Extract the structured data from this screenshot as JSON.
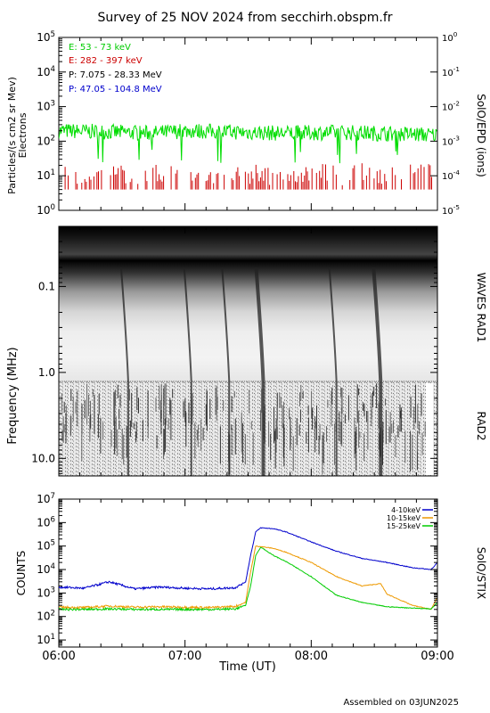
{
  "title": "Survey of 25 NOV 2024 from secchirh.obspm.fr",
  "footer": "Assembled on 03JUN2025",
  "x_axis": {
    "label": "Time (UT)",
    "ticks": [
      "06:00",
      "07:00",
      "08:00",
      "09:00"
    ],
    "range": [
      6.0,
      9.0
    ]
  },
  "panels": {
    "epd": {
      "ylabel_line1": "Particles/(s cm2 sr Mev)",
      "ylabel_line2": "Electrons",
      "right_label": "SolO/EPD (ions)",
      "left_ticks": [
        "10^0",
        "10^1",
        "10^2",
        "10^3",
        "10^4",
        "10^5"
      ],
      "right_ticks": [
        "10^-5",
        "10^-4",
        "10^-3",
        "10^-2",
        "10^-1",
        "10^0"
      ],
      "colors": {
        "e1": "#00dd00",
        "e2": "#cc0000"
      },
      "legend": [
        {
          "label": "E: 53 - 73 keV",
          "color": "#00cc00"
        },
        {
          "label": "E: 282 - 397 keV",
          "color": "#cc0000"
        },
        {
          "label": "P: 7.075 - 28.33 MeV",
          "color": "#000000"
        },
        {
          "label": "P: 47.05 - 104.8 MeV",
          "color": "#0000cc"
        }
      ]
    },
    "waves": {
      "ylabel": "Frequency (MHz)",
      "right_label_top": "WAVES RAD1",
      "right_label_bottom": "RAD2",
      "ticks": [
        "0.1",
        "1.0",
        "10.0"
      ]
    },
    "stix": {
      "ylabel": "COUNTS",
      "right_label": "SolO/STIX",
      "ticks": [
        "10^1",
        "10^2",
        "10^3",
        "10^4",
        "10^5",
        "10^6",
        "10^7"
      ]
    }
  },
  "chart_data": [
    {
      "type": "line",
      "ylabel": "Particles/(s cm2 sr Mev) Electrons",
      "y_scale": "log",
      "ylim": [
        1,
        100000
      ],
      "series": [
        {
          "name": "E: 53 - 73 keV",
          "color": "#00dd00",
          "x": [
            6.0,
            6.25,
            6.5,
            6.75,
            7.0,
            7.25,
            7.5,
            7.75,
            8.0,
            8.25,
            8.5,
            8.75,
            9.0
          ],
          "y": [
            200,
            190,
            180,
            170,
            200,
            190,
            180,
            170,
            175,
            180,
            170,
            160,
            150
          ]
        },
        {
          "name": "E: 282 - 397 keV",
          "color": "#cc0000",
          "x": [
            6.0,
            6.25,
            6.5,
            6.75,
            7.0,
            7.25,
            7.5,
            7.75,
            8.0,
            8.25,
            8.5,
            8.75,
            9.0
          ],
          "y": [
            8,
            7,
            7,
            7,
            8,
            8,
            7,
            7,
            8,
            7,
            8,
            7,
            8
          ]
        }
      ]
    },
    {
      "type": "heatmap",
      "ylabel": "Frequency (MHz)",
      "y_scale": "log",
      "ylim": [
        0.02,
        16
      ],
      "y_reversed": true,
      "description_bursts_x": [
        6.55,
        7.05,
        7.35,
        7.62,
        8.2,
        8.55
      ]
    },
    {
      "type": "line",
      "ylabel": "COUNTS",
      "y_scale": "log",
      "ylim": [
        5,
        10000000
      ],
      "series": [
        {
          "name": "4-10keV",
          "color": "#0000cc",
          "x": [
            6.0,
            6.2,
            6.4,
            6.6,
            6.8,
            7.0,
            7.2,
            7.4,
            7.48,
            7.52,
            7.56,
            7.6,
            7.7,
            7.8,
            8.0,
            8.2,
            8.4,
            8.6,
            8.8,
            8.95,
            9.0
          ],
          "y": [
            1800,
            1600,
            3000,
            1500,
            1800,
            1600,
            1500,
            1700,
            3000,
            40000,
            400000,
            600000,
            550000,
            400000,
            150000,
            60000,
            30000,
            20000,
            12000,
            10000,
            20000
          ]
        },
        {
          "name": "10-15keV",
          "color": "#ee9900",
          "x": [
            6.0,
            6.2,
            6.4,
            6.6,
            6.8,
            7.0,
            7.2,
            7.4,
            7.48,
            7.52,
            7.56,
            7.6,
            7.7,
            7.8,
            8.0,
            8.2,
            8.4,
            8.55,
            8.6,
            8.8,
            8.95,
            9.0
          ],
          "y": [
            250,
            240,
            280,
            250,
            260,
            250,
            240,
            270,
            400,
            8000,
            100000,
            95000,
            80000,
            55000,
            20000,
            5000,
            2000,
            2500,
            900,
            300,
            200,
            700
          ]
        },
        {
          "name": "15-25keV",
          "color": "#00cc00",
          "x": [
            6.0,
            6.2,
            6.4,
            6.6,
            6.8,
            7.0,
            7.2,
            7.4,
            7.48,
            7.52,
            7.56,
            7.6,
            7.7,
            7.8,
            8.0,
            8.2,
            8.4,
            8.6,
            8.8,
            8.95,
            9.0
          ],
          "y": [
            200,
            200,
            210,
            200,
            200,
            200,
            200,
            210,
            300,
            2000,
            40000,
            90000,
            40000,
            22000,
            5000,
            800,
            400,
            260,
            230,
            210,
            400
          ]
        }
      ]
    }
  ]
}
